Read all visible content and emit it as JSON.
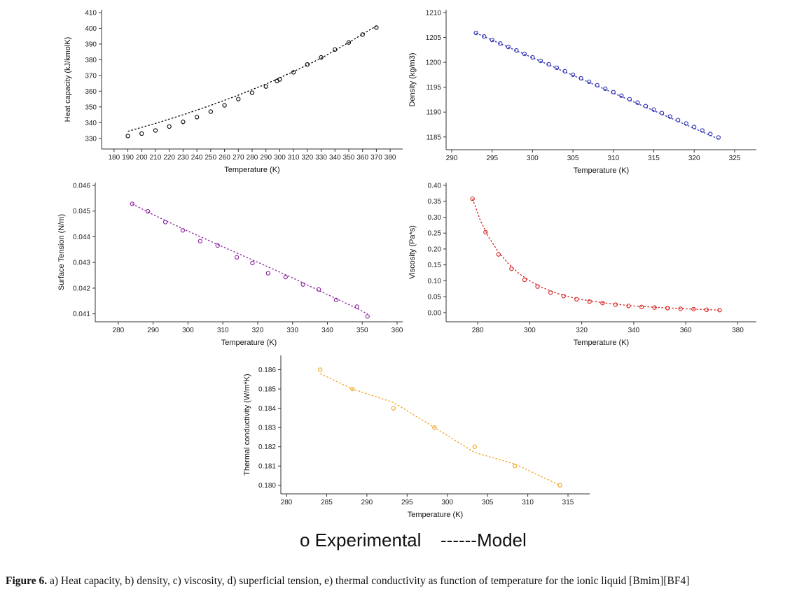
{
  "chart_data": [
    {
      "id": "heat",
      "type": "scatter",
      "xlabel": "Temperature (K)",
      "ylabel": "Heat capacity (kJ/kmolK)",
      "xlim": [
        175,
        385
      ],
      "ylim": [
        325,
        410
      ],
      "xticks": [
        180,
        190,
        200,
        210,
        220,
        230,
        240,
        250,
        260,
        270,
        280,
        290,
        300,
        310,
        320,
        330,
        340,
        350,
        360,
        370,
        380
      ],
      "yticks": [
        330,
        340,
        350,
        360,
        370,
        380,
        390,
        400,
        410
      ],
      "tick_decimals": 0,
      "color": "#000000",
      "series": [
        {
          "kind": "experimental",
          "x": [
            190,
            200,
            210,
            220,
            230,
            240,
            250,
            260,
            270,
            280,
            290,
            298,
            300,
            310,
            320,
            330,
            340,
            350,
            360,
            370
          ],
          "y": [
            331.5,
            333,
            335,
            337.5,
            340.5,
            343.5,
            347,
            351,
            355,
            359,
            363,
            366.5,
            367.5,
            372,
            377,
            381.5,
            386.5,
            391,
            396,
            400.5
          ]
        },
        {
          "kind": "model",
          "x": [
            190,
            210,
            230,
            250,
            270,
            290,
            310,
            330,
            350,
            370
          ],
          "y": [
            334.5,
            339.5,
            345,
            351,
            357.5,
            364.5,
            372.5,
            381,
            391,
            401.5
          ]
        }
      ]
    },
    {
      "id": "density",
      "type": "scatter",
      "xlabel": "Temperature (K)",
      "ylabel": "Density (kg/m3)",
      "xlim": [
        290,
        327
      ],
      "ylim": [
        1183,
        1210
      ],
      "xticks": [
        290,
        295,
        300,
        305,
        310,
        315,
        320,
        325
      ],
      "yticks": [
        1185,
        1190,
        1195,
        1200,
        1205,
        1210
      ],
      "tick_decimals": 0,
      "color": "#2b2bb3",
      "series": [
        {
          "kind": "experimental",
          "x": [
            293,
            294,
            295,
            296,
            297,
            298,
            299,
            300,
            301,
            302,
            303,
            304,
            305,
            306,
            307,
            308,
            309,
            310,
            311,
            312,
            313,
            314,
            315,
            316,
            317,
            318,
            319,
            320,
            321,
            322,
            323
          ],
          "y": [
            1205.9,
            1205.2,
            1204.5,
            1203.8,
            1203.1,
            1202.4,
            1201.7,
            1201.0,
            1200.3,
            1199.6,
            1198.9,
            1198.2,
            1197.5,
            1196.8,
            1196.1,
            1195.4,
            1194.7,
            1194.0,
            1193.3,
            1192.6,
            1191.9,
            1191.2,
            1190.5,
            1189.8,
            1189.1,
            1188.4,
            1187.7,
            1187.0,
            1186.3,
            1185.6,
            1184.9
          ]
        },
        {
          "kind": "model",
          "x": [
            293,
            323
          ],
          "y": [
            1205.9,
            1184.6
          ]
        }
      ]
    },
    {
      "id": "surface",
      "type": "scatter",
      "xlabel": "Temperature (K)",
      "ylabel": "Surface Tension (N/m)",
      "xlim": [
        275,
        360
      ],
      "ylim": [
        0.0408,
        0.046
      ],
      "xticks": [
        280,
        290,
        300,
        310,
        320,
        330,
        340,
        350,
        360
      ],
      "yticks": [
        0.041,
        0.042,
        0.043,
        0.044,
        0.045,
        0.046
      ],
      "tick_decimals": 3,
      "color": "#8b1e9e",
      "series": [
        {
          "kind": "experimental",
          "x": [
            284,
            288.5,
            293.5,
            298.5,
            303.5,
            308.5,
            314,
            318.5,
            323,
            328,
            333,
            337.5,
            342.5,
            348.5,
            351.5
          ],
          "y": [
            0.04528,
            0.04499,
            0.04457,
            0.04425,
            0.04383,
            0.04366,
            0.0432,
            0.04298,
            0.04258,
            0.04243,
            0.04214,
            0.04195,
            0.04154,
            0.04128,
            0.0409
          ]
        },
        {
          "kind": "model",
          "x": [
            284,
            290,
            300,
            310,
            320,
            330,
            340,
            348.5,
            351.5
          ],
          "y": [
            0.04528,
            0.04486,
            0.04422,
            0.04361,
            0.04301,
            0.0424,
            0.04175,
            0.04121,
            0.041
          ]
        }
      ]
    },
    {
      "id": "viscosity",
      "type": "scatter",
      "xlabel": "Temperature (K)",
      "ylabel": "Viscosity (Pa*s)",
      "xlim": [
        270,
        385
      ],
      "ylim": [
        -0.02,
        0.4
      ],
      "xticks": [
        280,
        300,
        320,
        340,
        360,
        380
      ],
      "yticks": [
        0.0,
        0.05,
        0.1,
        0.15,
        0.2,
        0.25,
        0.3,
        0.35,
        0.4
      ],
      "tick_decimals": 2,
      "color": "#d62020",
      "series": [
        {
          "kind": "experimental",
          "x": [
            278,
            283,
            288,
            293,
            298,
            303,
            308,
            313,
            318,
            323,
            328,
            333,
            338,
            343,
            348,
            353,
            358,
            363,
            368,
            373
          ],
          "y": [
            0.358,
            0.253,
            0.183,
            0.138,
            0.103,
            0.082,
            0.063,
            0.052,
            0.042,
            0.035,
            0.03,
            0.025,
            0.021,
            0.018,
            0.016,
            0.014,
            0.012,
            0.011,
            0.009,
            0.008
          ]
        },
        {
          "kind": "model",
          "x": [
            278,
            281,
            284,
            288,
            292,
            296,
            300,
            305,
            310,
            315,
            320,
            330,
            340,
            350,
            360,
            373
          ],
          "y": [
            0.358,
            0.29,
            0.24,
            0.19,
            0.152,
            0.122,
            0.1,
            0.078,
            0.062,
            0.05,
            0.041,
            0.029,
            0.021,
            0.016,
            0.012,
            0.008
          ]
        }
      ]
    },
    {
      "id": "thermal",
      "type": "scatter",
      "xlabel": "Temperature (K)",
      "ylabel": "Thermal conductivity (W/m*K)",
      "xlim": [
        280,
        317
      ],
      "ylim": [
        0.1797,
        0.1866
      ],
      "xticks": [
        280,
        285,
        290,
        295,
        300,
        305,
        310,
        315
      ],
      "yticks": [
        0.18,
        0.181,
        0.182,
        0.183,
        0.184,
        0.185,
        0.186
      ],
      "tick_decimals": 3,
      "color": "#f0a020",
      "series": [
        {
          "kind": "experimental",
          "x": [
            284.2,
            288.2,
            293.3,
            298.4,
            303.4,
            308.4,
            314
          ],
          "y": [
            0.186,
            0.185,
            0.184,
            0.183,
            0.182,
            0.181,
            0.18
          ]
        },
        {
          "kind": "model",
          "x": [
            284.2,
            288.2,
            293.3,
            298.4,
            303.4,
            308.4,
            314
          ],
          "y": [
            0.1858,
            0.185,
            0.1843,
            0.183,
            0.1817,
            0.1811,
            0.18
          ]
        }
      ]
    }
  ],
  "legend": {
    "experimental": "o Experimental",
    "model": "------Model"
  },
  "caption": {
    "label": "Figure 6.",
    "text": " a) Heat capacity, b) density, c) viscosity, d) superficial tension, e) thermal conductivity as function of temperature for the ionic liquid [Bmim][BF4]"
  }
}
